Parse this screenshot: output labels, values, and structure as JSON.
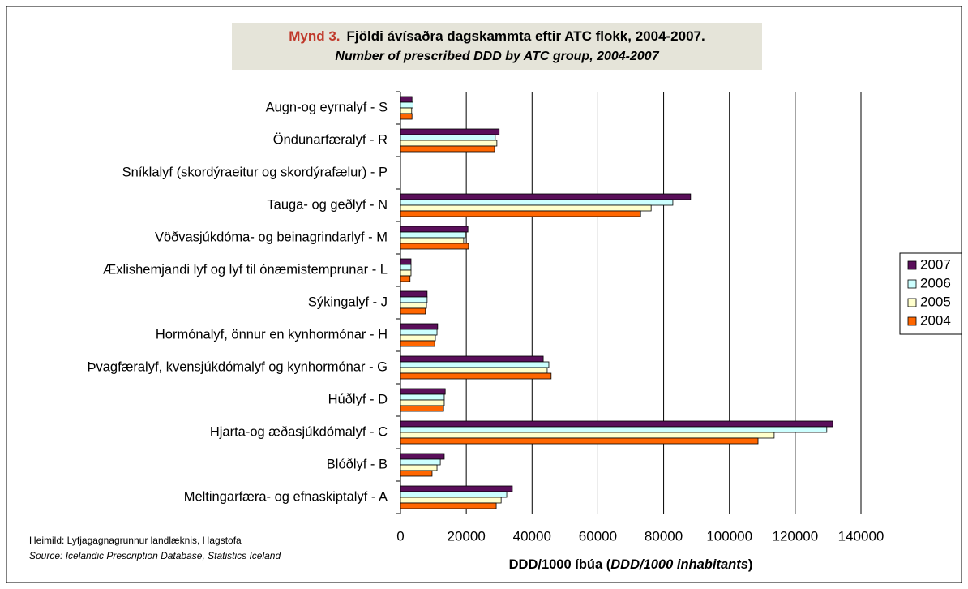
{
  "chart_data": {
    "type": "hbar",
    "title_prefix": "Mynd 3.",
    "title": "Fjöldi ávísaðra dagskammta eftir ATC flokk, 2004-2007.",
    "subtitle": "Number of prescribed DDD by ATC group, 2004-2007",
    "x_label": [
      "DDD/1000 íbúa (",
      "DDD/1000 inhabitants",
      ")"
    ],
    "source": [
      "Heimild: Lyfjagagnagrunnur landlæknis, Hagstofa",
      "Source: Icelandic Prescription Database, Statistics Iceland"
    ],
    "categories": [
      "Augn-og eyrnalyf - S",
      "Öndunarfæralyf - R",
      "Sníklalyf (skordýraeitur og skordýrafælur) - P",
      "Tauga- og geðlyf - N",
      "Vöðvasjúkdóma- og beinagrindarlyf - M",
      "Æxlishemjandi lyf og lyf til ónæmistemprunar - L",
      "Sýkingalyf - J",
      "Hormónalyf, önnur en kynhormónar - H",
      "Þvagfæralyf, kvensjúkdómalyf og kynhormónar - G",
      "Húðlyf - D",
      "Hjarta-og æðasjúkdómalyf - C",
      "Blóðlyf - B",
      "Meltingarfæra- og efnaskiptalyf - A"
    ],
    "series": [
      {
        "name": "2007",
        "color": "#5a0f5a",
        "values": [
          3500,
          30000,
          0,
          88200,
          20500,
          3200,
          8100,
          11300,
          43400,
          13600,
          131400,
          13300,
          34000
        ]
      },
      {
        "name": "2006",
        "color": "#ccffff",
        "values": [
          3800,
          28800,
          0,
          82800,
          19700,
          3200,
          8100,
          11100,
          45100,
          13300,
          129600,
          12100,
          32300
        ]
      },
      {
        "name": "2005",
        "color": "#ffffcc",
        "values": [
          3400,
          29300,
          0,
          76200,
          19200,
          3200,
          7900,
          10600,
          44600,
          13300,
          113600,
          11100,
          30600
        ]
      },
      {
        "name": "2004",
        "color": "#ff6600",
        "values": [
          3500,
          28600,
          0,
          73000,
          20700,
          2900,
          7600,
          10400,
          45800,
          13100,
          108700,
          9600,
          29100
        ]
      }
    ],
    "xlim": [
      0,
      140000
    ],
    "xticks": [
      0,
      20000,
      40000,
      60000,
      80000,
      100000,
      120000,
      140000
    ],
    "grid": true,
    "legend": "right"
  }
}
